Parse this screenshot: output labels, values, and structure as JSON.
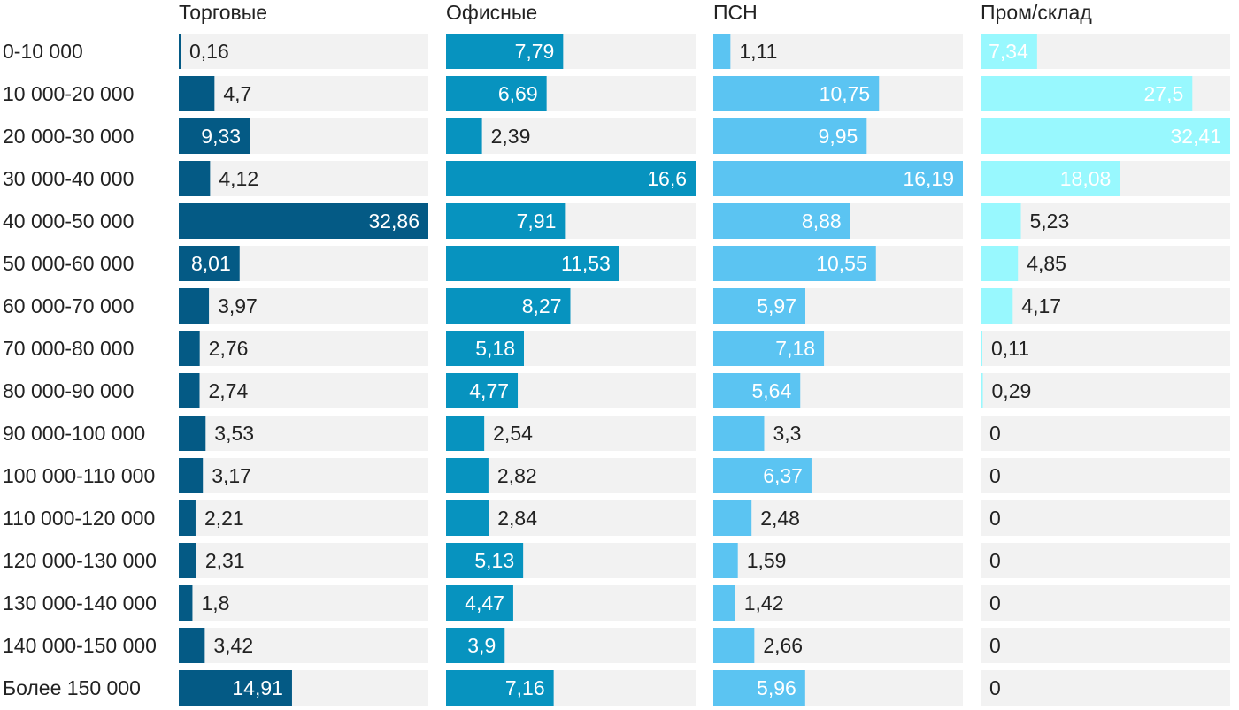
{
  "chart_data": {
    "type": "bar",
    "orientation": "horizontal",
    "layout": "small-multiples",
    "categories": [
      "0-10 000",
      "10 000-20 000",
      "20 000-30 000",
      "30 000-40 000",
      "40 000-50 000",
      "50 000-60 000",
      "60 000-70 000",
      "70 000-80 000",
      "80 000-90 000",
      "90 000-100 000",
      "100 000-110 000",
      "110 000-120 000",
      "120 000-130 000",
      "130 000-140 000",
      "140 000-150 000",
      "Более 150 000"
    ],
    "series": [
      {
        "name": "Торговые",
        "color": "#045a85",
        "values": [
          0.16,
          4.7,
          9.33,
          4.12,
          32.86,
          8.01,
          3.97,
          2.76,
          2.74,
          3.53,
          3.17,
          2.21,
          2.31,
          1.8,
          3.42,
          14.91
        ],
        "labels": [
          "0,16",
          "4,7",
          "9,33",
          "4,12",
          "32,86",
          "8,01",
          "3,97",
          "2,76",
          "2,74",
          "3,53",
          "3,17",
          "2,21",
          "2,31",
          "1,8",
          "3,42",
          "14,91"
        ]
      },
      {
        "name": "Офисные",
        "color": "#0793bf",
        "values": [
          7.79,
          6.69,
          2.39,
          16.6,
          7.91,
          11.53,
          8.27,
          5.18,
          4.77,
          2.54,
          2.82,
          2.84,
          5.13,
          4.47,
          3.9,
          7.16
        ],
        "labels": [
          "7,79",
          "6,69",
          "2,39",
          "16,6",
          "7,91",
          "11,53",
          "8,27",
          "5,18",
          "4,77",
          "2,54",
          "2,82",
          "2,84",
          "5,13",
          "4,47",
          "3,9",
          "7,16"
        ]
      },
      {
        "name": "ПСН",
        "color": "#5bc4f2",
        "values": [
          1.11,
          10.75,
          9.95,
          16.19,
          8.88,
          10.55,
          5.97,
          7.18,
          5.64,
          3.3,
          6.37,
          2.48,
          1.59,
          1.42,
          2.66,
          5.96
        ],
        "labels": [
          "1,11",
          "10,75",
          "9,95",
          "16,19",
          "8,88",
          "10,55",
          "5,97",
          "7,18",
          "5,64",
          "3,3",
          "6,37",
          "2,48",
          "1,59",
          "1,42",
          "2,66",
          "5,96"
        ]
      },
      {
        "name": "Пром/склад",
        "color": "#98f8fe",
        "values": [
          7.34,
          27.5,
          32.41,
          18.08,
          5.23,
          4.85,
          4.17,
          0.11,
          0.29,
          0,
          0,
          0,
          0,
          0,
          0,
          0
        ],
        "labels": [
          "7,34",
          "27,5",
          "32,41",
          "18,08",
          "5,23",
          "4,85",
          "4,17",
          "0,11",
          "0,29",
          "0",
          "0",
          "0",
          "0",
          "0",
          "0",
          "0"
        ]
      }
    ],
    "x_max_per_panel": [
      32.86,
      16.6,
      16.19,
      32.41
    ],
    "track_color": "#f2f2f2",
    "label_color_inside": "#ffffff",
    "label_color_outside": "#222222",
    "grid": false,
    "legend": "none"
  }
}
